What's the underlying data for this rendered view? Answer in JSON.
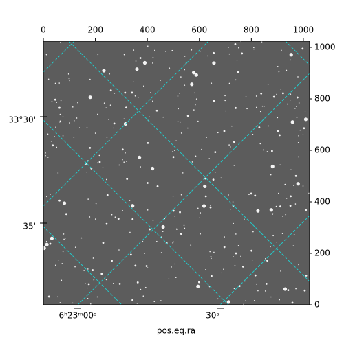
{
  "chart_data": {
    "type": "image",
    "xlabel": "pos.eq.ra",
    "xlim": [
      0,
      1024
    ],
    "xticks": [
      0,
      200,
      400,
      600,
      800,
      1000
    ],
    "ylim": [
      0,
      1024
    ],
    "yticks": [
      0,
      200,
      400,
      600,
      800,
      1000
    ],
    "world_xticks": [
      "6ʰ23ᵐ00ˢ",
      "30ˢ"
    ],
    "world_yticks": [
      "33°30'",
      "35'"
    ],
    "grid": true,
    "grid_color": "#22cccc"
  }
}
